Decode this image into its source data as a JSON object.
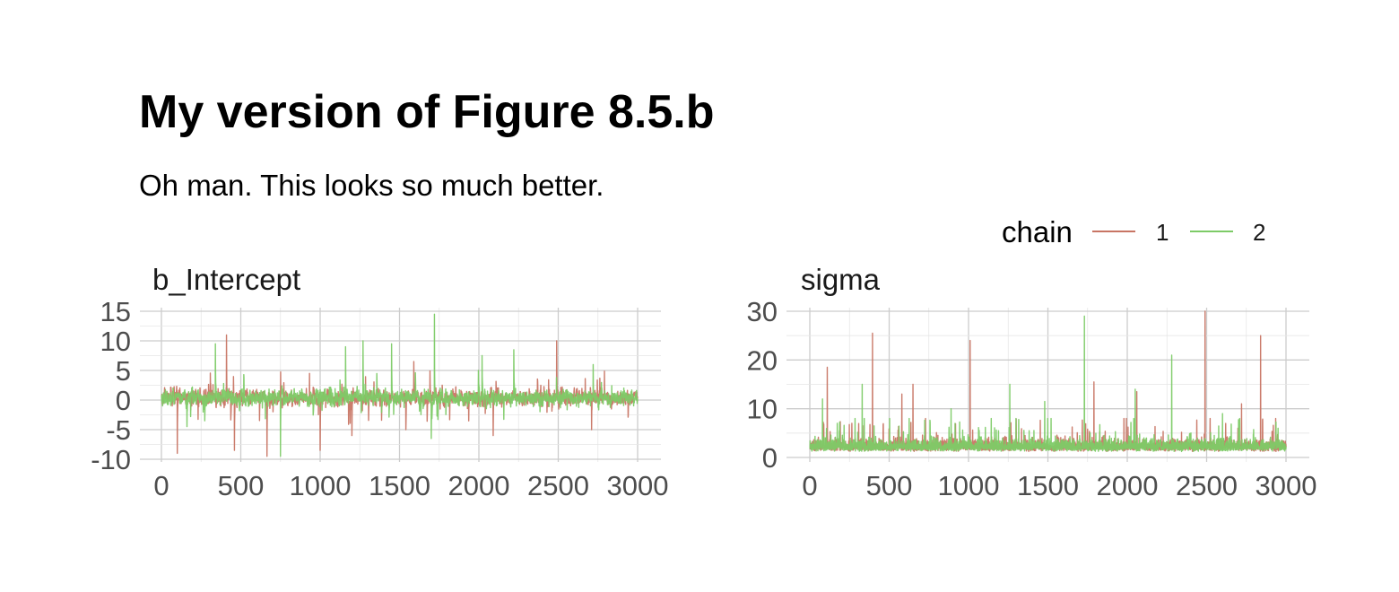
{
  "title": "My version of Figure 8.5.b",
  "subtitle": "Oh man. This looks so much better.",
  "legend": {
    "title": "chain",
    "position": "top-right",
    "entries": [
      {
        "label": "1",
        "color": "#c87564"
      },
      {
        "label": "2",
        "color": "#7dcb67"
      }
    ]
  },
  "chart_data": [
    {
      "type": "line",
      "panel": "b_Intercept",
      "x": {
        "from": 1,
        "to": 3000
      },
      "xlim": [
        0,
        3000
      ],
      "ylim": [
        -10,
        15
      ],
      "x_ticks": [
        "0",
        "500",
        "1000",
        "1500",
        "2000",
        "2500",
        "3000"
      ],
      "y_ticks": [
        "15",
        "10",
        "5",
        "0",
        "-5",
        "-10"
      ],
      "grid": true,
      "series": [
        {
          "name": "1",
          "center": 0.4,
          "typical_range": [
            -3,
            3.5
          ],
          "spikes": [
            [
              410,
              11
            ],
            [
              665,
              -9.5
            ],
            [
              100,
              -9
            ],
            [
              1000,
              -8.5
            ],
            [
              2490,
              10
            ],
            [
              460,
              -8.5
            ],
            [
              1590,
              6.5
            ],
            [
              2710,
              -5
            ],
            [
              2090,
              -6
            ],
            [
              1540,
              -5
            ],
            [
              1200,
              -6
            ]
          ]
        },
        {
          "name": "2",
          "center": 0.4,
          "typical_range": [
            -2.5,
            3
          ],
          "spikes": [
            [
              1720,
              14.5
            ],
            [
              340,
              9.5
            ],
            [
              1270,
              10
            ],
            [
              1450,
              9.5
            ],
            [
              1160,
              9
            ],
            [
              2220,
              8.5
            ],
            [
              750,
              -9.5
            ],
            [
              2020,
              7.5
            ],
            [
              1700,
              -6.5
            ],
            [
              2720,
              6
            ]
          ]
        }
      ]
    },
    {
      "type": "line",
      "panel": "sigma",
      "x": {
        "from": 1,
        "to": 3000
      },
      "xlim": [
        0,
        3000
      ],
      "ylim": [
        0,
        30
      ],
      "x_ticks": [
        "0",
        "500",
        "1000",
        "1500",
        "2000",
        "2500",
        "3000"
      ],
      "y_ticks": [
        "30",
        "20",
        "10",
        "0"
      ],
      "grid": true,
      "series": [
        {
          "name": "1",
          "center": 2.5,
          "typical_range": [
            1,
            5
          ],
          "spikes": [
            [
              2490,
              30
            ],
            [
              395,
              25.5
            ],
            [
              1010,
              24
            ],
            [
              2840,
              25
            ],
            [
              110,
              18.5
            ],
            [
              1790,
              15.5
            ],
            [
              650,
              15
            ],
            [
              2060,
              13.5
            ],
            [
              580,
              13
            ],
            [
              2720,
              11
            ]
          ]
        },
        {
          "name": "2",
          "center": 2.5,
          "typical_range": [
            1,
            5
          ],
          "spikes": [
            [
              1730,
              29
            ],
            [
              2280,
              21
            ],
            [
              330,
              15
            ],
            [
              1260,
              15
            ],
            [
              2050,
              14
            ],
            [
              80,
              12
            ],
            [
              1480,
              11.5
            ],
            [
              890,
              10
            ],
            [
              2600,
              9
            ],
            [
              2950,
              6
            ]
          ]
        }
      ]
    }
  ]
}
